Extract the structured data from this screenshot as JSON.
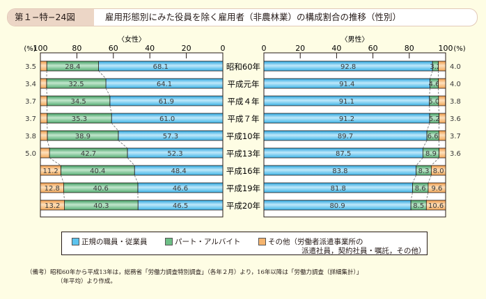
{
  "header": {
    "figure_id": "第１−特−24図",
    "title": "雇用形態別にみた役員を除く雇用者（非農林業）の構成割合の推移（性別）"
  },
  "colors": {
    "regular": "#5cc3ee",
    "part_time": "#6dbf86",
    "other": "#f5b46e",
    "background": "#fefde4",
    "title_tag": "#ecd6c6"
  },
  "legend": {
    "items": [
      {
        "key": "regular",
        "label": "正規の職員・従業員"
      },
      {
        "key": "part_time",
        "label": "パート・アルバイト"
      },
      {
        "key": "other",
        "label": "その他（労働者派遣事業所の"
      }
    ],
    "other_line2": "派遣社員，契約社員・嘱託，その他）"
  },
  "note": {
    "line1": "（備考）昭和60年から平成13年は，総務省「労働力調査特別調査」（各年２月）より，16年以降は「労働力調査（詳細集計）」",
    "line2": "（年平均）より作成。"
  },
  "chart_data": [
    {
      "type": "bar",
      "orientation": "horizontal-stacked",
      "title": "〈女性〉",
      "axis_unit": "(%)",
      "xlim": [
        100,
        0
      ],
      "ticks": [
        "100",
        "80",
        "60",
        "40",
        "20",
        "0"
      ],
      "categories": [
        "昭和60年",
        "平成元年",
        "平成４年",
        "平成７年",
        "平成10年",
        "平成13年",
        "平成16年",
        "平成19年",
        "平成20年"
      ],
      "series": [
        {
          "name": "正規の職員・従業員",
          "key": "regular",
          "values": [
            68.1,
            64.1,
            61.9,
            61.0,
            57.3,
            52.3,
            48.4,
            46.6,
            46.5
          ]
        },
        {
          "name": "パート・アルバイト",
          "key": "part_time",
          "values": [
            28.4,
            32.5,
            34.5,
            35.3,
            38.9,
            42.7,
            40.4,
            40.6,
            40.3
          ]
        },
        {
          "name": "その他（労働者派遣事業所の派遣社員，契約社員・嘱託，その他）",
          "key": "other",
          "values": [
            3.5,
            3.4,
            3.7,
            3.7,
            3.8,
            5.0,
            11.2,
            12.8,
            13.2
          ]
        }
      ]
    },
    {
      "type": "bar",
      "orientation": "horizontal-stacked",
      "title": "〈男性〉",
      "axis_unit": "(%)",
      "xlim": [
        0,
        100
      ],
      "ticks": [
        "0",
        "20",
        "40",
        "60",
        "80",
        "100"
      ],
      "categories": [
        "昭和60年",
        "平成元年",
        "平成４年",
        "平成７年",
        "平成10年",
        "平成13年",
        "平成16年",
        "平成19年",
        "平成20年"
      ],
      "series": [
        {
          "name": "正規の職員・従業員",
          "key": "regular",
          "values": [
            92.8,
            91.4,
            91.1,
            91.2,
            89.7,
            87.5,
            83.8,
            81.8,
            80.9
          ]
        },
        {
          "name": "パート・アルバイト",
          "key": "part_time",
          "values": [
            3.2,
            4.6,
            5.0,
            5.2,
            6.6,
            8.9,
            8.3,
            8.6,
            8.5
          ]
        },
        {
          "name": "その他（労働者派遣事業所の派遣社員，契約社員・嘱託，その他）",
          "key": "other",
          "values": [
            4.0,
            4.0,
            3.8,
            3.6,
            3.7,
            3.6,
            8.0,
            9.6,
            10.6
          ]
        }
      ]
    }
  ]
}
